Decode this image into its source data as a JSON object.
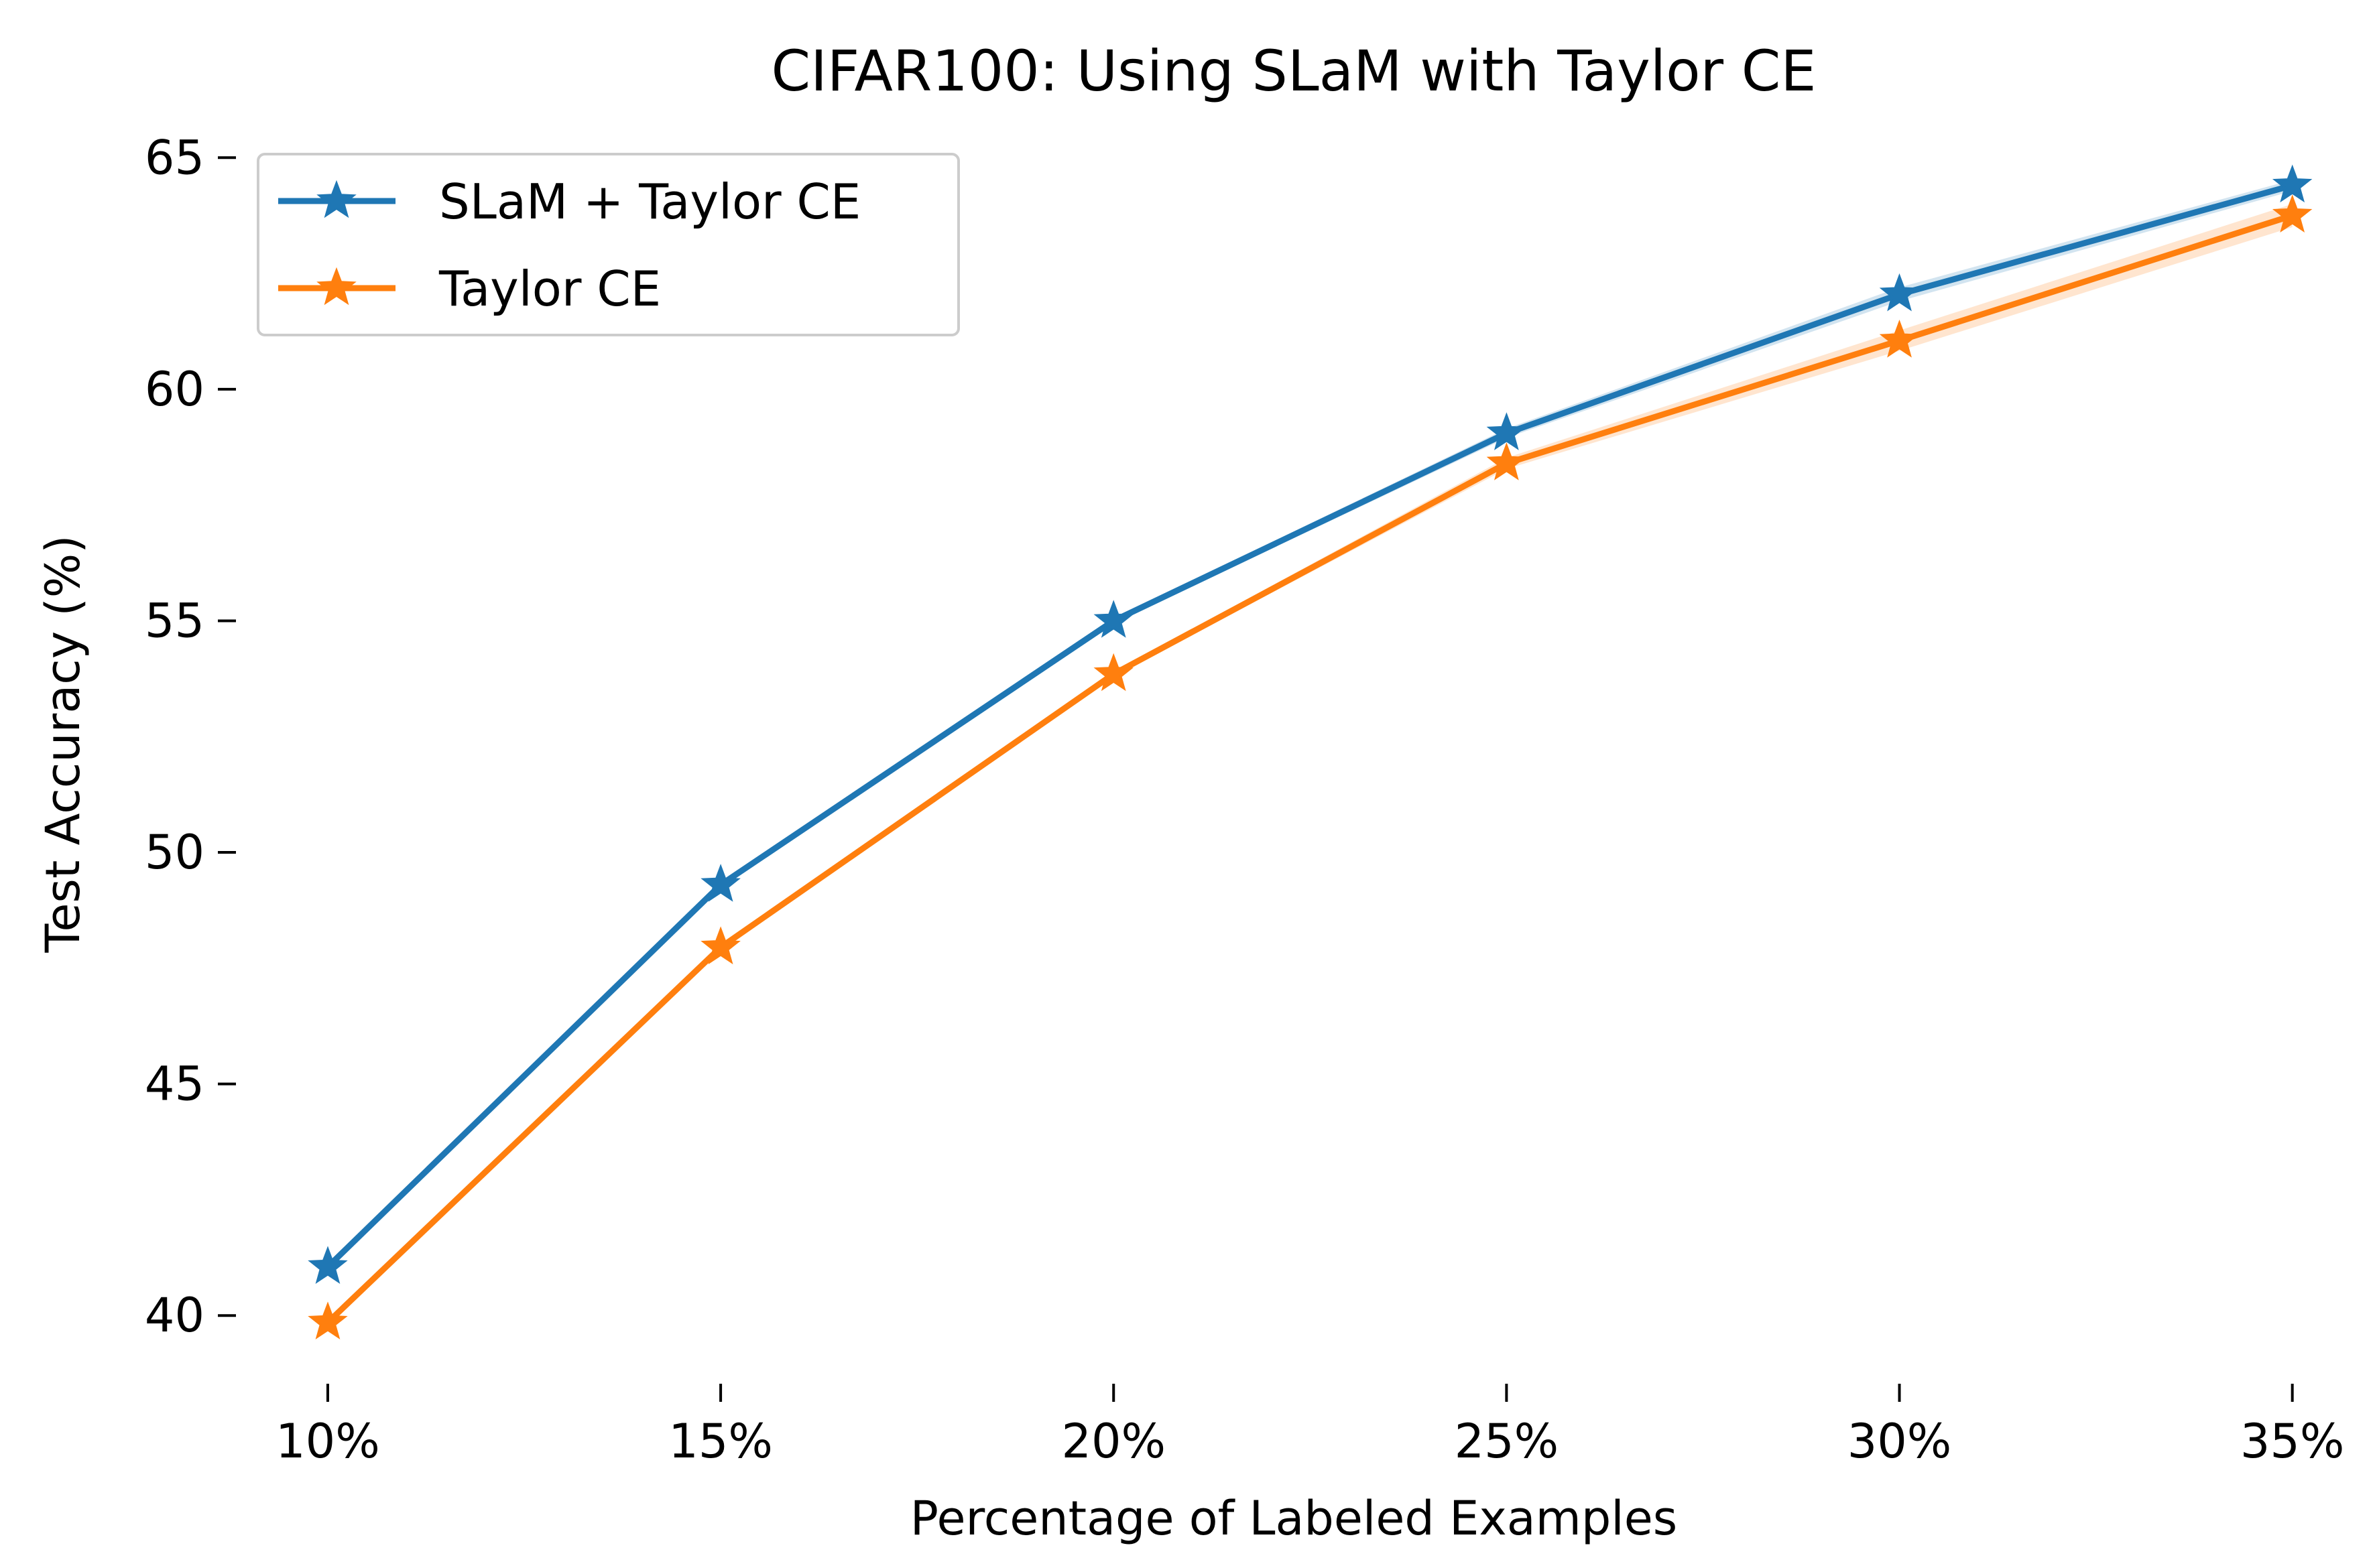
{
  "chart_data": {
    "type": "line",
    "title": "CIFAR100: Using SLaM with Taylor CE",
    "xlabel": "Percentage of Labeled Examples",
    "ylabel": "Test Accuracy (%)",
    "x": [
      10,
      15,
      20,
      25,
      30,
      35
    ],
    "x_tick_labels": [
      "10%",
      "15%",
      "20%",
      "25%",
      "30%",
      "35%"
    ],
    "y_ticks": [
      40,
      45,
      50,
      55,
      60,
      65
    ],
    "y_tick_labels": [
      "40",
      "45",
      "50",
      "55",
      "60",
      "65"
    ],
    "xlim": [
      8.9,
      35.6
    ],
    "ylim": [
      38.6,
      65.8
    ],
    "grid": false,
    "legend": "top-left",
    "marker": "star",
    "series": [
      {
        "name": "SLaM + Taylor CE",
        "color": "#1f77b4",
        "values": [
          41.05,
          49.3,
          55.0,
          59.05,
          62.05,
          64.4
        ],
        "band": [
          0.05,
          0.08,
          0.05,
          0.1,
          0.15,
          0.12
        ]
      },
      {
        "name": "Taylor CE",
        "color": "#ff7f0e",
        "values": [
          39.85,
          47.95,
          53.85,
          58.4,
          61.05,
          63.75
        ],
        "band": [
          0.05,
          0.08,
          0.05,
          0.12,
          0.22,
          0.25
        ]
      }
    ]
  }
}
